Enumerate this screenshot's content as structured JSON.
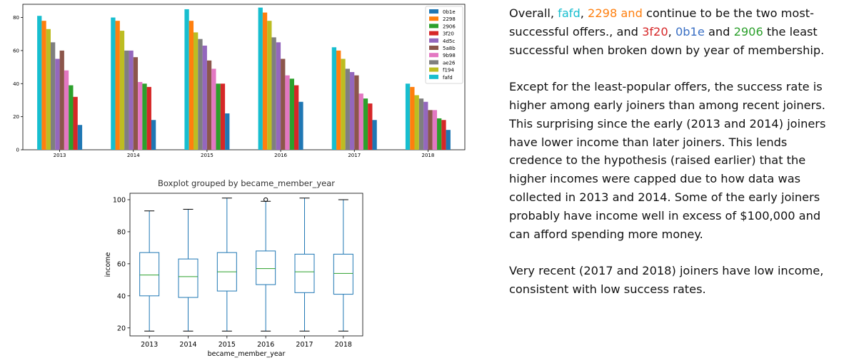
{
  "chart_data": [
    {
      "type": "bar",
      "categories": [
        "2013",
        "2014",
        "2015",
        "2016",
        "2017",
        "2018"
      ],
      "ylim": [
        0,
        88
      ],
      "yticks": [
        0,
        20,
        40,
        60,
        80
      ],
      "legend_position": "top-right",
      "grid": false,
      "series": [
        {
          "name": "fafd",
          "color": "#17becf",
          "values": [
            81,
            80,
            85,
            86,
            62,
            40
          ]
        },
        {
          "name": "2298",
          "color": "#ff7f0e",
          "values": [
            78,
            78,
            78,
            83,
            60,
            38
          ]
        },
        {
          "name": "f194",
          "color": "#bcbd22",
          "values": [
            73,
            72,
            71,
            78,
            55,
            33
          ]
        },
        {
          "name": "ae26",
          "color": "#7f7f7f",
          "values": [
            65,
            60,
            67,
            68,
            49,
            31
          ]
        },
        {
          "name": "4d5c",
          "color": "#9467bd",
          "values": [
            55,
            60,
            63,
            65,
            47,
            29
          ]
        },
        {
          "name": "5a8b",
          "color": "#8c564b",
          "values": [
            60,
            56,
            54,
            55,
            45,
            24
          ]
        },
        {
          "name": "9b98",
          "color": "#e377c2",
          "values": [
            48,
            41,
            49,
            45,
            34,
            24
          ]
        },
        {
          "name": "2906",
          "color": "#2ca02c",
          "values": [
            39,
            40,
            40,
            43,
            31,
            19
          ]
        },
        {
          "name": "3f20",
          "color": "#d62728",
          "values": [
            32,
            38,
            40,
            39,
            28,
            18
          ]
        },
        {
          "name": "0b1e",
          "color": "#1f77b4",
          "values": [
            15,
            18,
            22,
            29,
            18,
            12
          ]
        }
      ],
      "legend_order": [
        "0b1e",
        "2298",
        "2906",
        "3f20",
        "4d5c",
        "5a8b",
        "9b98",
        "ae26",
        "f194",
        "fafd"
      ]
    },
    {
      "type": "boxplot",
      "title": "Boxplot grouped by became_member_year",
      "xlabel": "became_member_year",
      "ylabel": "income",
      "categories": [
        "2013",
        "2014",
        "2015",
        "2016",
        "2017",
        "2018"
      ],
      "ylim": [
        15,
        104
      ],
      "yticks": [
        20,
        40,
        60,
        80,
        100
      ],
      "box_color": "#1f77b4",
      "median_color": "#2ca02c",
      "boxes": [
        {
          "whislo": 18,
          "q1": 40,
          "med": 53,
          "q3": 67,
          "whishi": 93,
          "fliers": []
        },
        {
          "whislo": 18,
          "q1": 39,
          "med": 52,
          "q3": 63,
          "whishi": 94,
          "fliers": []
        },
        {
          "whislo": 18,
          "q1": 43,
          "med": 55,
          "q3": 67,
          "whishi": 101,
          "fliers": []
        },
        {
          "whislo": 18,
          "q1": 47,
          "med": 57,
          "q3": 68,
          "whishi": 99,
          "fliers": [
            100
          ]
        },
        {
          "whislo": 18,
          "q1": 42,
          "med": 55,
          "q3": 66,
          "whishi": 101,
          "fliers": []
        },
        {
          "whislo": 18,
          "q1": 41,
          "med": 54,
          "q3": 66,
          "whishi": 100,
          "fliers": []
        }
      ]
    }
  ],
  "commentary": {
    "p1": {
      "a": "Overall, ",
      "fafd": "fafd",
      "b": ", ",
      "n2298": "2298 and ",
      "c": " continue to be the two most-successful offers., and ",
      "n3f20": "3f20",
      "d": ", ",
      "n0b1e": "0b1e",
      "e": " and ",
      "n2906": "2906",
      "f": " the least successful when broken down by year of membership."
    },
    "p2": "Except for the least-popular offers, the success rate is higher among early joiners than among recent joiners. This surprising since the early (2013 and 2014) joiners have lower income than later joiners. This lends credence to the hypothesis (raised earlier) that the higher incomes were capped due to how data was collected in 2013 and 2014. Some of the early joiners probably have income well in excess of $100,000 and can afford spending more money.",
    "p3": "Very recent (2017 and 2018) joiners have low income, consistent with low success rates."
  }
}
